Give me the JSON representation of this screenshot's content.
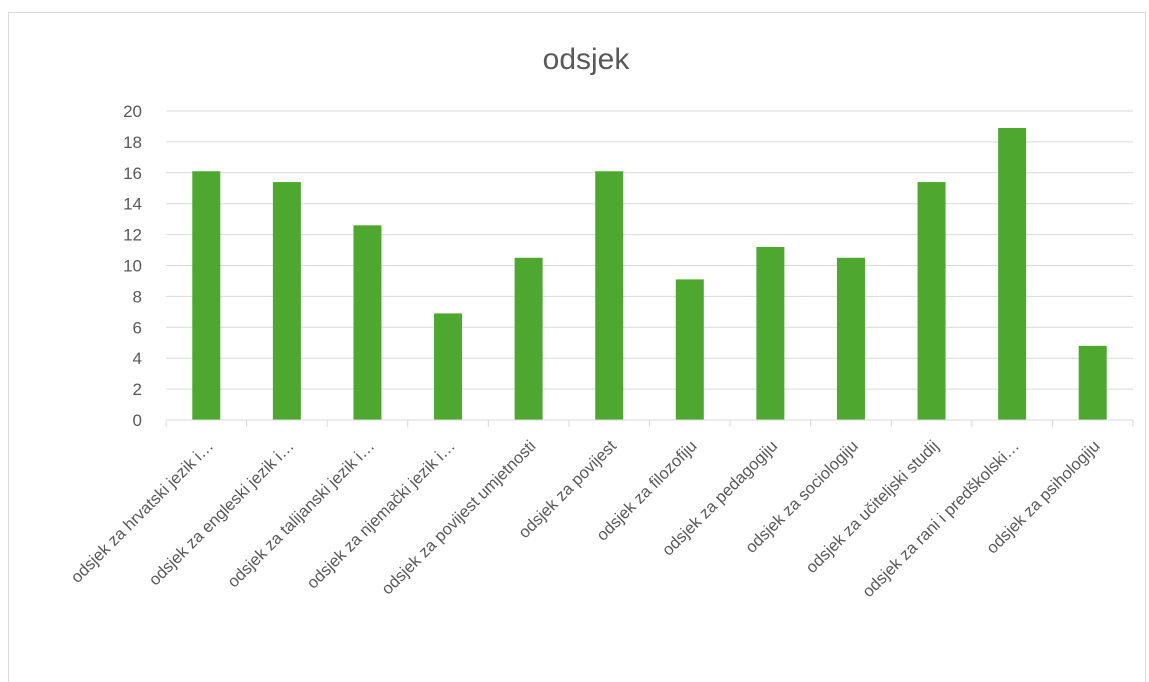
{
  "chart_data": {
    "type": "bar",
    "title": "odsjek",
    "xlabel": "",
    "ylabel": "",
    "ylim": [
      0,
      20
    ],
    "yticks": [
      0,
      2,
      4,
      6,
      8,
      10,
      12,
      14,
      16,
      18,
      20
    ],
    "grid": true,
    "legend": "none",
    "bar_color": "#4ea72e",
    "categories": [
      "odsjek za hrvatski jezik i…",
      "odsjek za engleski jezik i…",
      "odsjek za talijanski jezik i…",
      "odsjek za njemački jezik i…",
      "odsjek za povijest umjetnosti",
      "odsjek za povijest",
      "odsjek za filozofiju",
      "odsjek za pedagogiju",
      "odsjek za sociologiju",
      "odsjek za učiteljski studij",
      "odsjek za rani i predškolski…",
      "odsjek za psihologiju"
    ],
    "values": [
      16.1,
      15.4,
      12.6,
      6.9,
      10.5,
      16.1,
      9.1,
      11.2,
      10.5,
      15.4,
      18.9,
      4.8
    ]
  }
}
